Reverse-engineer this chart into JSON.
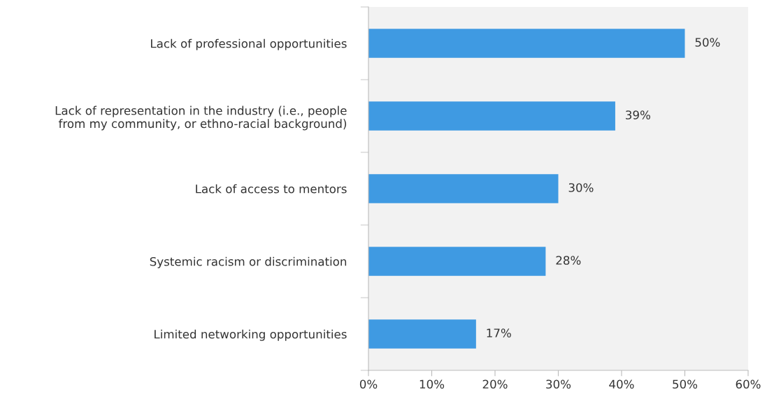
{
  "chart_data": {
    "type": "bar",
    "orientation": "horizontal",
    "categories": [
      "Lack of professional opportunities",
      "Lack of representation in the industry (i.e., people\nfrom my community, or ethno-racial background)",
      "Lack of access to mentors",
      "Systemic racism or discrimination",
      "Limited networking opportunities"
    ],
    "values": [
      50,
      39,
      30,
      28,
      17
    ],
    "value_labels": [
      "50%",
      "39%",
      "30%",
      "28%",
      "17%"
    ],
    "color": "#3f9ae2",
    "xlim": [
      0,
      60
    ],
    "xticks": [
      {
        "value": 0,
        "label": "0%"
      },
      {
        "value": 10,
        "label": "10%"
      },
      {
        "value": 20,
        "label": "20%"
      },
      {
        "value": 30,
        "label": "30%"
      },
      {
        "value": 40,
        "label": "40%"
      },
      {
        "value": 50,
        "label": "50%"
      },
      {
        "value": 60,
        "label": "60%"
      }
    ],
    "grid": false
  }
}
